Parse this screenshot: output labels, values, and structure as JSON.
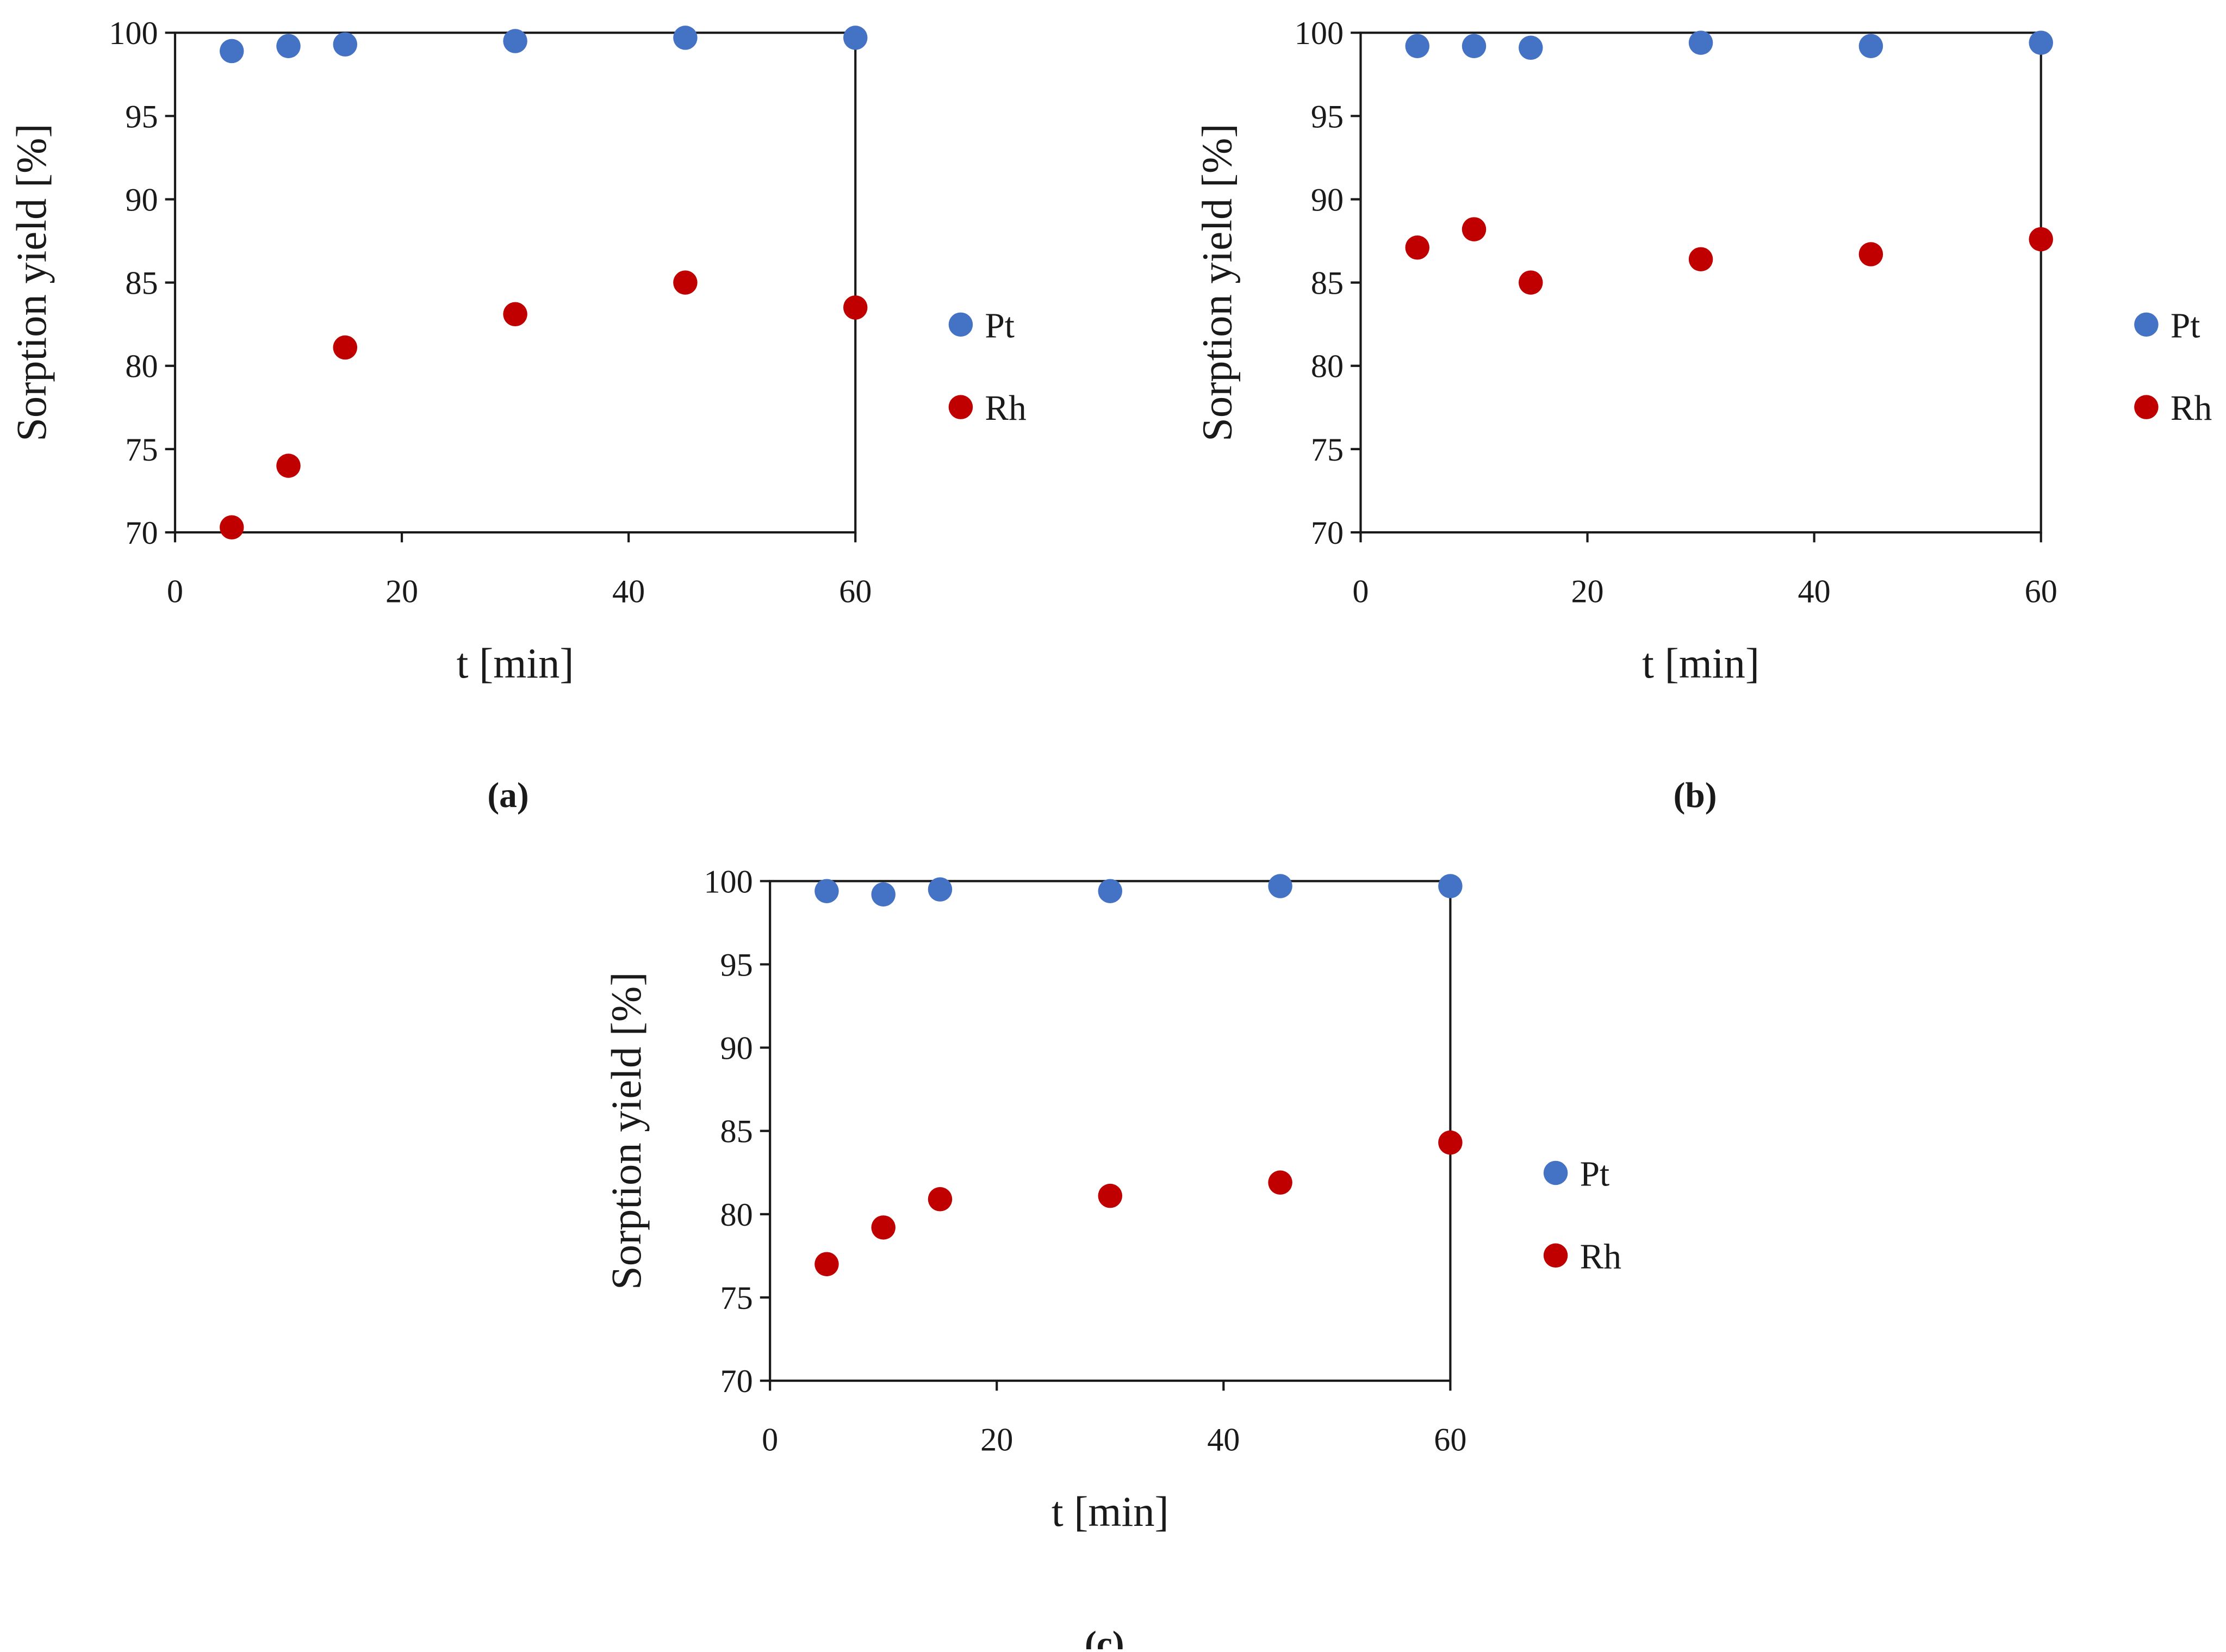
{
  "colors": {
    "Pt": "#4472C4",
    "Rh": "#C00000",
    "axis": "#1a1a1a"
  },
  "chart_data": [
    {
      "type": "scatter",
      "panel_label": "(a)",
      "xlabel": "t [min]",
      "ylabel": "Sorption yield [%]",
      "xlim": [
        0,
        60
      ],
      "ylim": [
        70,
        100
      ],
      "xticks": [
        "0",
        "20",
        "40",
        "60"
      ],
      "yticks": [
        "70",
        "75",
        "80",
        "85",
        "90",
        "95",
        "100"
      ],
      "grid": false,
      "legend_position": "right",
      "series": [
        {
          "name": "Pt",
          "x": [
            5,
            10,
            15,
            30,
            45,
            60
          ],
          "y": [
            98.9,
            99.2,
            99.3,
            99.5,
            99.7,
            99.7
          ]
        },
        {
          "name": "Rh",
          "x": [
            5,
            10,
            15,
            30,
            45,
            60
          ],
          "y": [
            70.3,
            74.0,
            81.1,
            83.1,
            85.0,
            83.5
          ]
        }
      ]
    },
    {
      "type": "scatter",
      "panel_label": "(b)",
      "xlabel": "t [min]",
      "ylabel": "Sorption yield [%]",
      "xlim": [
        0,
        60
      ],
      "ylim": [
        70,
        100
      ],
      "xticks": [
        "0",
        "20",
        "40",
        "60"
      ],
      "yticks": [
        "70",
        "75",
        "80",
        "85",
        "90",
        "95",
        "100"
      ],
      "grid": false,
      "legend_position": "right",
      "series": [
        {
          "name": "Pt",
          "x": [
            5,
            10,
            15,
            30,
            45,
            60
          ],
          "y": [
            99.2,
            99.2,
            99.1,
            99.4,
            99.2,
            99.4
          ]
        },
        {
          "name": "Rh",
          "x": [
            5,
            10,
            15,
            30,
            45,
            60
          ],
          "y": [
            87.1,
            88.2,
            85.0,
            86.4,
            86.7,
            87.6
          ]
        }
      ]
    },
    {
      "type": "scatter",
      "panel_label": "(c)",
      "xlabel": "t [min]",
      "ylabel": "Sorption yield [%]",
      "xlim": [
        0,
        60
      ],
      "ylim": [
        70,
        100
      ],
      "xticks": [
        "0",
        "20",
        "40",
        "60"
      ],
      "yticks": [
        "70",
        "75",
        "80",
        "85",
        "90",
        "95",
        "100"
      ],
      "grid": false,
      "legend_position": "right",
      "series": [
        {
          "name": "Pt",
          "x": [
            5,
            10,
            15,
            30,
            45,
            60
          ],
          "y": [
            99.4,
            99.2,
            99.5,
            99.4,
            99.7,
            99.7
          ]
        },
        {
          "name": "Rh",
          "x": [
            5,
            10,
            15,
            30,
            45,
            60
          ],
          "y": [
            77.0,
            79.2,
            80.9,
            81.1,
            81.9,
            84.3
          ]
        }
      ]
    }
  ]
}
